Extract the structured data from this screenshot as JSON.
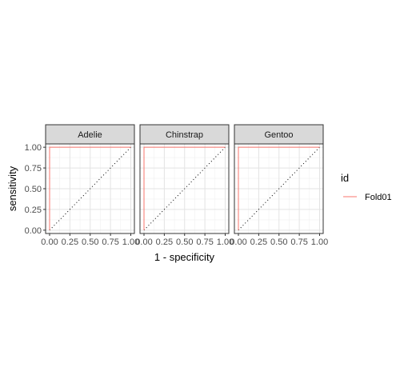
{
  "chart_data": {
    "type": "line",
    "facet_type": "roc-curve-facets",
    "xlabel": "1 - specificity",
    "ylabel": "sensitivity",
    "xlim": [
      0,
      1
    ],
    "ylim": [
      0,
      1
    ],
    "x_ticks": [
      "0.00",
      "0.25",
      "0.50",
      "0.75",
      "1.00"
    ],
    "y_ticks": [
      "0.00",
      "0.25",
      "0.50",
      "0.75",
      "1.00"
    ],
    "grid": true,
    "diagonal_reference": true,
    "legend": {
      "title": "id",
      "placement": "right",
      "entries": [
        {
          "name": "Fold01",
          "color": "#F8766D"
        }
      ]
    },
    "panels": [
      {
        "label": "Adelie",
        "series": [
          {
            "name": "Fold01",
            "color": "#F8766D",
            "x": [
              0,
              0,
              0,
              1
            ],
            "y": [
              0,
              0.01,
              1,
              1
            ]
          }
        ]
      },
      {
        "label": "Chinstrap",
        "series": [
          {
            "name": "Fold01",
            "color": "#F8766D",
            "x": [
              0,
              0,
              0,
              1
            ],
            "y": [
              0,
              0.01,
              1,
              1
            ]
          }
        ]
      },
      {
        "label": "Gentoo",
        "series": [
          {
            "name": "Fold01",
            "color": "#F8766D",
            "x": [
              0,
              0,
              0,
              1
            ],
            "y": [
              0,
              0.01,
              1,
              1
            ]
          }
        ]
      }
    ]
  }
}
